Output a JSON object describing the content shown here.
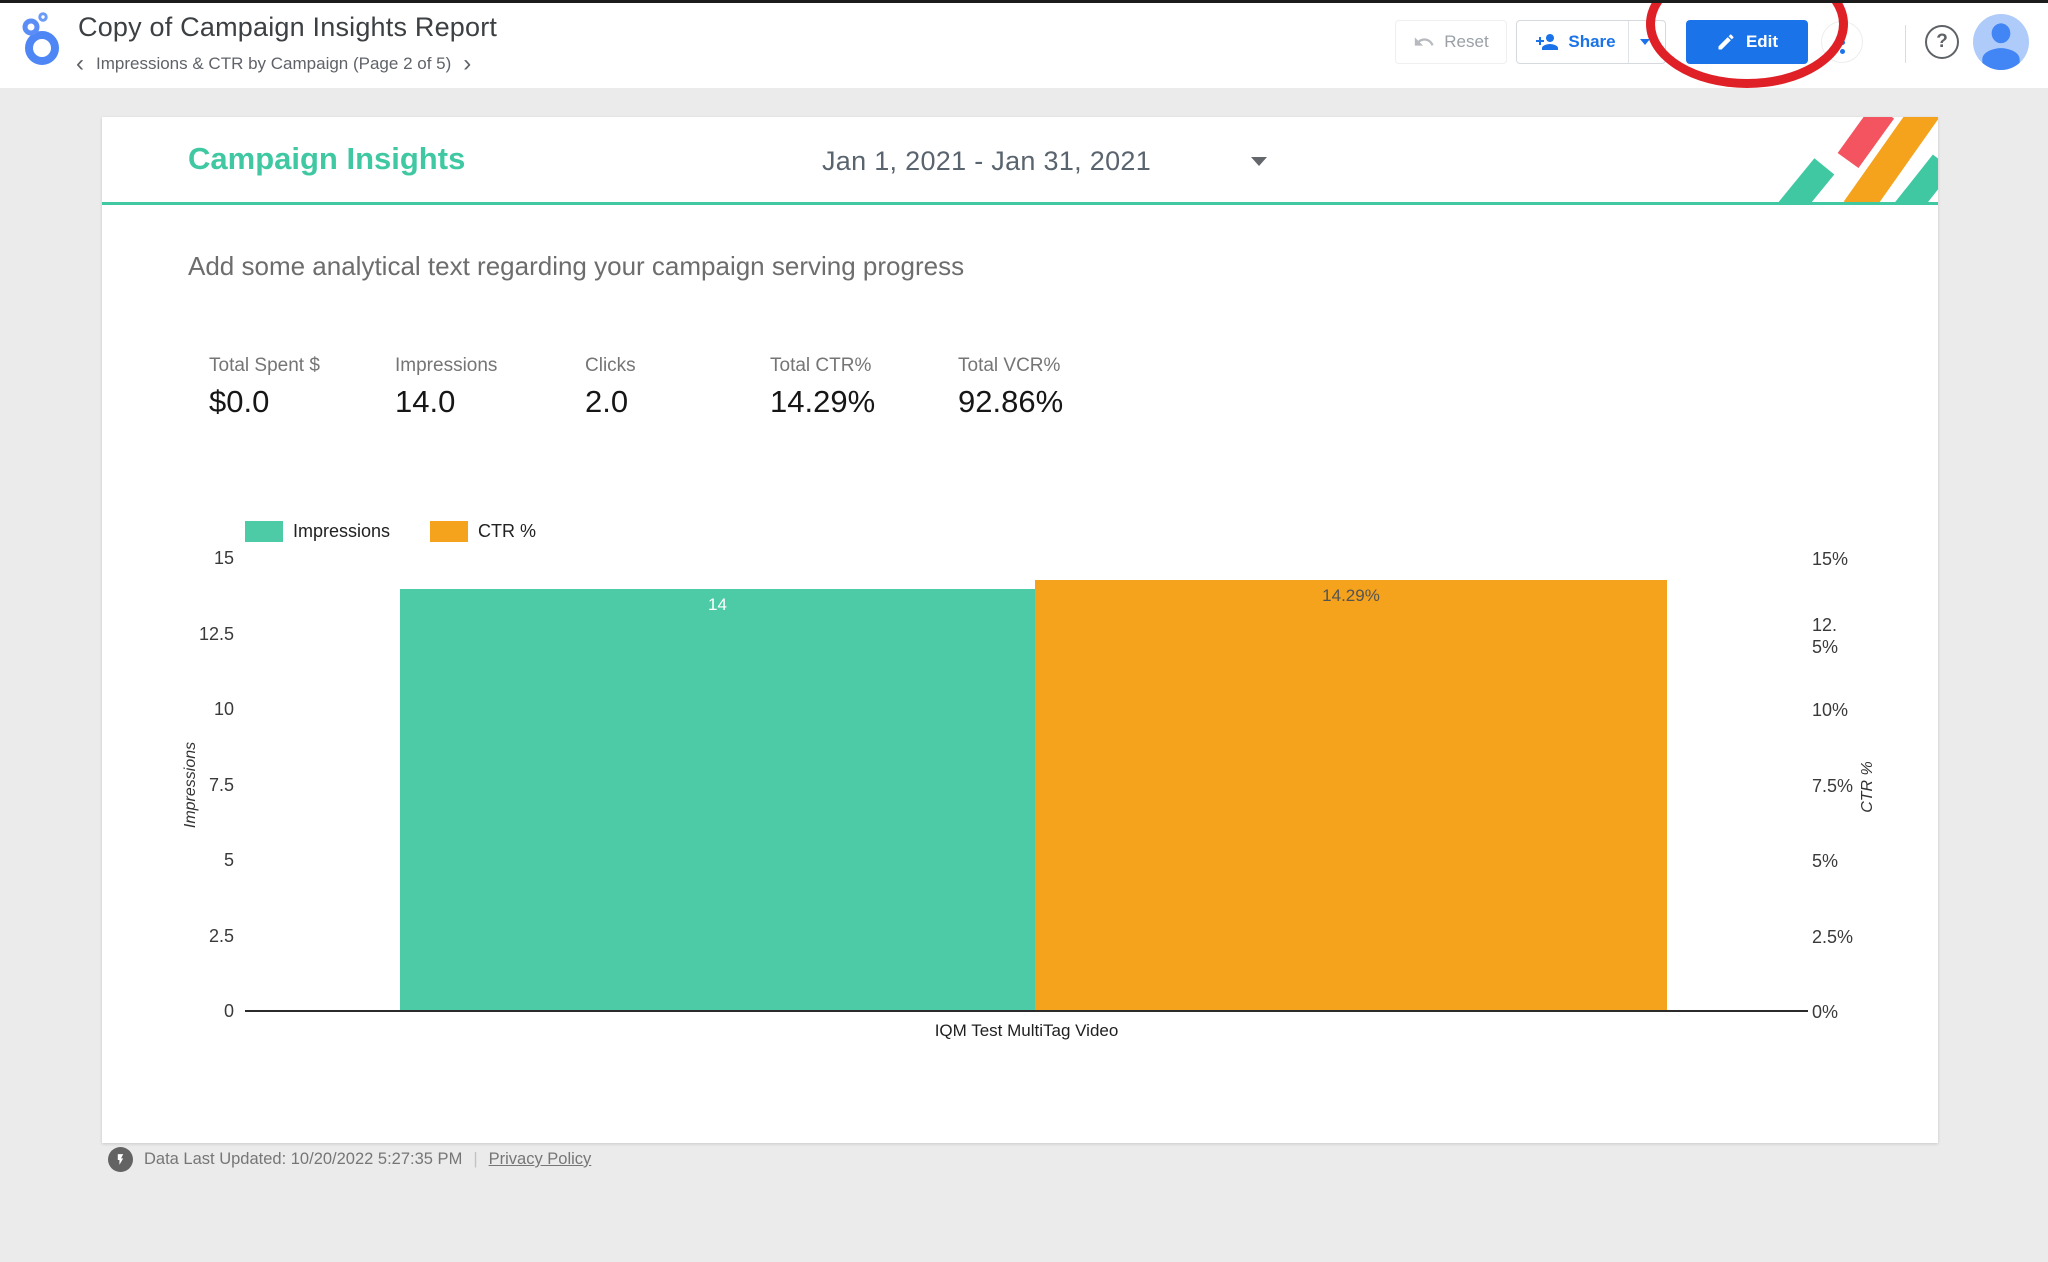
{
  "colors": {
    "teal": "#40C8A3",
    "orange": "#F5A21D",
    "red": "#F4545F",
    "blue": "#1A73E8",
    "annotation_red": "#DF2026",
    "page_bg": "#EBEBEB"
  },
  "app_bar": {
    "title": "Copy of Campaign Insights Report",
    "page_nav": {
      "prev_icon": "‹",
      "label": "Impressions & CTR by Campaign (Page 2 of 5)",
      "next_icon": "›"
    },
    "reset_label": "Reset",
    "share_label": "Share",
    "edit_label": "Edit",
    "help_glyph": "?"
  },
  "report": {
    "page_title": "Campaign Insights",
    "date_range": "Jan 1, 2021 - Jan 31, 2021",
    "description": "Add some analytical text regarding your campaign serving progress",
    "scorecards": [
      {
        "label": "Total Spent $",
        "value": "$0.0"
      },
      {
        "label": "Impressions",
        "value": "14.0"
      },
      {
        "label": "Clicks",
        "value": "2.0"
      },
      {
        "label": "Total CTR%",
        "value": "14.29%"
      },
      {
        "label": "Total VCR%",
        "value": "92.86%"
      }
    ]
  },
  "chart_data": {
    "type": "bar",
    "categories": [
      "IQM Test MultiTag Video"
    ],
    "series": [
      {
        "name": "Impressions",
        "axis": "left",
        "values": [
          14
        ],
        "label": "14",
        "color": "#4CCBA6"
      },
      {
        "name": "CTR %",
        "axis": "right",
        "values": [
          14.29
        ],
        "label": "14.29%",
        "color": "#F5A21D"
      }
    ],
    "left_axis": {
      "title": "Impressions",
      "range": [
        0,
        15
      ],
      "ticks": [
        "15",
        "12.5",
        "10",
        "7.5",
        "5",
        "2.5",
        "0"
      ]
    },
    "right_axis": {
      "title": "CTR %",
      "range": [
        0,
        15
      ],
      "ticks": [
        "15%",
        "12.5%",
        "10%",
        "7.5%",
        "5%",
        "2.5%",
        "0%"
      ]
    },
    "legend_position": "top-left",
    "grid": false
  },
  "footer": {
    "updated_text": "Data Last Updated: 10/20/2022 5:27:35 PM",
    "separator": "|",
    "privacy_label": "Privacy Policy"
  }
}
